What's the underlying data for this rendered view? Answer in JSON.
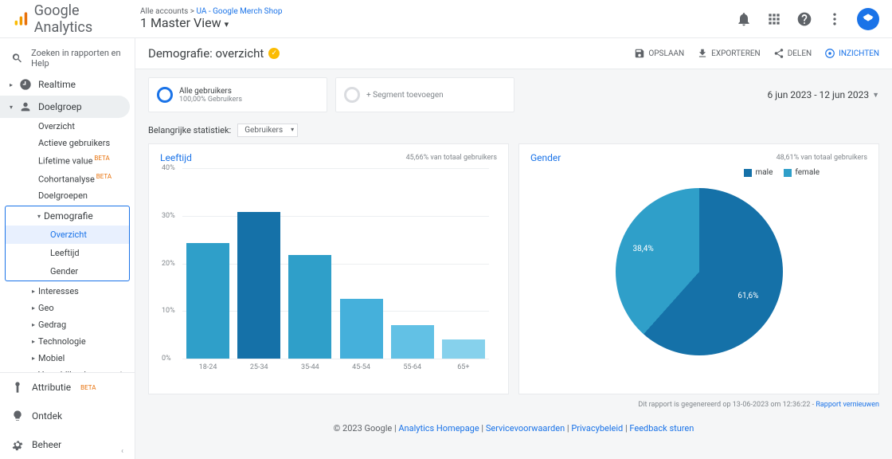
{
  "brand": "Google Analytics",
  "crumb": {
    "all": "Alle accounts",
    "sep": " > ",
    "acct": "UA - Google Merch Shop",
    "view": "1 Master View"
  },
  "search_placeholder": "Zoeken in rapporten en Help",
  "nav": {
    "realtime": "Realtime",
    "audience": "Doelgroep",
    "items": [
      "Overzicht",
      "Actieve gebruikers",
      "Lifetime value",
      "Cohortanalyse",
      "Doelgroepen"
    ],
    "demografie": "Demografie",
    "demo_items": [
      "Overzicht",
      "Leeftijd",
      "Gender"
    ],
    "post": [
      "Interesses",
      "Geo",
      "Gedrag",
      "Technologie",
      "Mobiel"
    ],
    "devices": "Verschillende apparaten",
    "bottom": [
      "Attributie",
      "Ontdek",
      "Beheer"
    ]
  },
  "page": {
    "title": "Demografie: overzicht",
    "actions": {
      "save": "OPSLAAN",
      "export": "EXPORTEREN",
      "share": "DELEN",
      "insights": "INZICHTEN"
    }
  },
  "seg": {
    "all": "Alle gebruikers",
    "sub": "100,00% Gebruikers",
    "add": "+ Segment toevoegen"
  },
  "daterange": "6 jun 2023 - 12 jun 2023",
  "stat": {
    "label": "Belangrijke statistiek:",
    "value": "Gebruikers"
  },
  "age": {
    "title": "Leeftijd",
    "meta": "45,66% van totaal gebruikers",
    "categories": [
      "18-24",
      "25-34",
      "35-44",
      "45-54",
      "55-64",
      "65+"
    ],
    "values": [
      24.3,
      30.8,
      21.8,
      12.5,
      7.1,
      4.1
    ],
    "ymax": 40,
    "ystep": 10,
    "colors": [
      "#2f9fc9",
      "#1571a8",
      "#2f9fc9",
      "#45b0db",
      "#62c1e5",
      "#86d1ec"
    ]
  },
  "gender": {
    "title": "Gender",
    "meta": "48,61% van totaal gebruikers",
    "legend": [
      {
        "label": "male",
        "color": "#1571a8"
      },
      {
        "label": "female",
        "color": "#2f9fc9"
      }
    ],
    "slices": [
      {
        "label": "61,6%",
        "value": 61.6,
        "color": "#1571a8"
      },
      {
        "label": "38,4%",
        "value": 38.4,
        "color": "#2f9fc9"
      }
    ]
  },
  "report_footer": {
    "pre": "Dit rapport is gegenereerd op 13-06-2023 om 12:36:22 - ",
    "link": "Rapport vernieuwen"
  },
  "footer": {
    "copyright": "© 2023 Google",
    "links": [
      "Analytics Homepage",
      "Servicevoorwaarden",
      "Privacybeleid",
      "Feedback sturen"
    ]
  }
}
